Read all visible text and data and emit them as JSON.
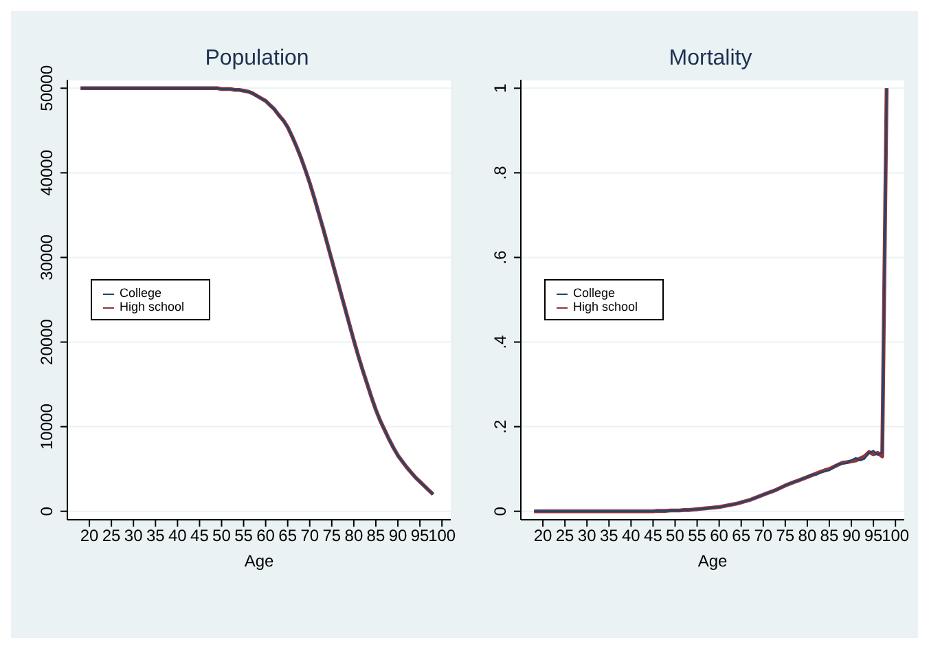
{
  "chart_data": [
    {
      "type": "line",
      "title": "Population",
      "xlabel": "Age",
      "x": [
        18,
        19,
        20,
        21,
        22,
        23,
        24,
        25,
        26,
        27,
        28,
        29,
        30,
        31,
        32,
        33,
        34,
        35,
        36,
        37,
        38,
        39,
        40,
        41,
        42,
        43,
        44,
        45,
        46,
        47,
        48,
        49,
        50,
        51,
        52,
        53,
        54,
        55,
        56,
        57,
        58,
        59,
        60,
        61,
        62,
        63,
        64,
        65,
        66,
        67,
        68,
        69,
        70,
        71,
        72,
        73,
        74,
        75,
        76,
        77,
        78,
        79,
        80,
        81,
        82,
        83,
        84,
        85,
        86,
        87,
        88,
        89,
        90,
        91,
        92,
        93,
        94,
        95,
        96,
        97,
        98
      ],
      "series": [
        {
          "name": "College",
          "color": "#1a476f",
          "values": [
            50000,
            50000,
            50000,
            50000,
            50000,
            50000,
            50000,
            50000,
            50000,
            50000,
            50000,
            50000,
            50000,
            50000,
            50000,
            50000,
            50000,
            50000,
            50000,
            50000,
            50000,
            50000,
            50000,
            50000,
            50000,
            50000,
            50000,
            50000,
            50000,
            50000,
            50000,
            50000,
            49900,
            49900,
            49900,
            49800,
            49800,
            49700,
            49600,
            49400,
            49100,
            48800,
            48500,
            48000,
            47500,
            46800,
            46200,
            45400,
            44300,
            43100,
            41800,
            40350,
            38800,
            37100,
            35300,
            33500,
            31600,
            29700,
            27800,
            25900,
            24000,
            22100,
            20200,
            18400,
            16700,
            15100,
            13500,
            12000,
            10700,
            9600,
            8500,
            7500,
            6600,
            5900,
            5200,
            4600,
            4000,
            3500,
            3000,
            2500,
            2000
          ]
        },
        {
          "name": "High school",
          "color": "#90353b",
          "values": [
            50000,
            50000,
            50000,
            50000,
            50000,
            50000,
            50000,
            50000,
            50000,
            50000,
            50000,
            50000,
            50000,
            50000,
            50000,
            50000,
            50000,
            50000,
            50000,
            50000,
            50000,
            50000,
            50000,
            50000,
            50000,
            50000,
            50000,
            50000,
            50000,
            50000,
            50000,
            50000,
            49900,
            49900,
            49900,
            49800,
            49800,
            49700,
            49600,
            49400,
            49100,
            48800,
            48500,
            48000,
            47500,
            46800,
            46200,
            45400,
            44300,
            43100,
            41800,
            40350,
            38800,
            37100,
            35300,
            33500,
            31600,
            29700,
            27800,
            25900,
            24000,
            22100,
            20200,
            18400,
            16700,
            15100,
            13500,
            12000,
            10700,
            9600,
            8500,
            7500,
            6600,
            5900,
            5200,
            4600,
            4000,
            3500,
            3000,
            2500,
            2000
          ]
        }
      ],
      "xlim": [
        15,
        102
      ],
      "xticks": [
        20,
        25,
        30,
        35,
        40,
        45,
        50,
        55,
        60,
        65,
        70,
        75,
        80,
        85,
        90,
        95,
        100
      ],
      "ylim": [
        -1000,
        51000
      ],
      "yticks": [
        0,
        10000,
        20000,
        30000,
        40000,
        50000
      ],
      "grid": "y",
      "legend": "left",
      "marker": "none",
      "line_style": "solid"
    },
    {
      "type": "line",
      "title": "Mortality",
      "xlabel": "Age",
      "x": [
        18,
        19,
        20,
        21,
        22,
        23,
        24,
        25,
        26,
        27,
        28,
        29,
        30,
        31,
        32,
        33,
        34,
        35,
        36,
        37,
        38,
        39,
        40,
        41,
        42,
        43,
        44,
        45,
        46,
        47,
        48,
        49,
        50,
        51,
        52,
        53,
        54,
        55,
        56,
        57,
        58,
        59,
        60,
        61,
        62,
        63,
        64,
        65,
        66,
        67,
        68,
        69,
        70,
        71,
        72,
        73,
        74,
        75,
        76,
        77,
        78,
        79,
        80,
        81,
        82,
        83,
        84,
        85,
        86,
        87,
        88,
        89,
        90,
        91,
        92,
        93,
        94,
        95,
        96,
        97,
        98
      ],
      "series": [
        {
          "name": "College",
          "color": "#1a476f",
          "values": [
            0,
            0,
            0,
            0,
            0,
            0,
            0,
            0,
            0,
            0,
            0,
            0,
            0,
            0,
            0,
            0,
            0,
            0,
            0,
            0,
            0,
            0,
            0,
            0,
            0,
            0,
            0,
            0,
            0.001,
            0.001,
            0.001,
            0.002,
            0.002,
            0.002,
            0.003,
            0.003,
            0.004,
            0.005,
            0.006,
            0.007,
            0.008,
            0.009,
            0.01,
            0.012,
            0.014,
            0.016,
            0.018,
            0.021,
            0.024,
            0.027,
            0.031,
            0.035,
            0.039,
            0.043,
            0.047,
            0.051,
            0.056,
            0.061,
            0.065,
            0.069,
            0.073,
            0.077,
            0.081,
            0.087,
            0.086,
            0.092,
            0.094,
            0.097,
            0.104,
            0.112,
            0.112,
            0.114,
            0.121,
            0.126,
            0.12,
            0.124,
            0.138,
            0.143,
            0.133,
            0.14,
            1
          ]
        },
        {
          "name": "High school",
          "color": "#90353b",
          "values": [
            0,
            0,
            0,
            0,
            0,
            0,
            0,
            0,
            0,
            0,
            0,
            0,
            0,
            0,
            0,
            0,
            0,
            0,
            0,
            0,
            0,
            0,
            0,
            0,
            0,
            0,
            0,
            0,
            0.001,
            0.001,
            0.001,
            0.002,
            0.002,
            0.002,
            0.003,
            0.003,
            0.004,
            0.005,
            0.006,
            0.007,
            0.008,
            0.009,
            0.01,
            0.012,
            0.014,
            0.016,
            0.018,
            0.021,
            0.024,
            0.027,
            0.031,
            0.035,
            0.039,
            0.043,
            0.047,
            0.051,
            0.056,
            0.061,
            0.065,
            0.069,
            0.073,
            0.077,
            0.081,
            0.085,
            0.089,
            0.093,
            0.097,
            0.1,
            0.105,
            0.11,
            0.115,
            0.116,
            0.118,
            0.12,
            0.125,
            0.13,
            0.14,
            0.135,
            0.138,
            0.13,
            1
          ]
        }
      ],
      "xlim": [
        15,
        102
      ],
      "xticks": [
        20,
        25,
        30,
        35,
        40,
        45,
        50,
        55,
        60,
        65,
        70,
        75,
        80,
        85,
        90,
        95,
        100
      ],
      "ylim": [
        -0.02,
        1.02
      ],
      "yticks": [
        0,
        {
          "value": 0.2,
          "label": ".2"
        },
        {
          "value": 0.4,
          "label": ".4"
        },
        {
          "value": 0.6,
          "label": ".6"
        },
        {
          "value": 0.8,
          "label": ".8"
        },
        1
      ],
      "grid": "y",
      "legend": "left",
      "marker": "none",
      "line_style": "solid"
    }
  ]
}
